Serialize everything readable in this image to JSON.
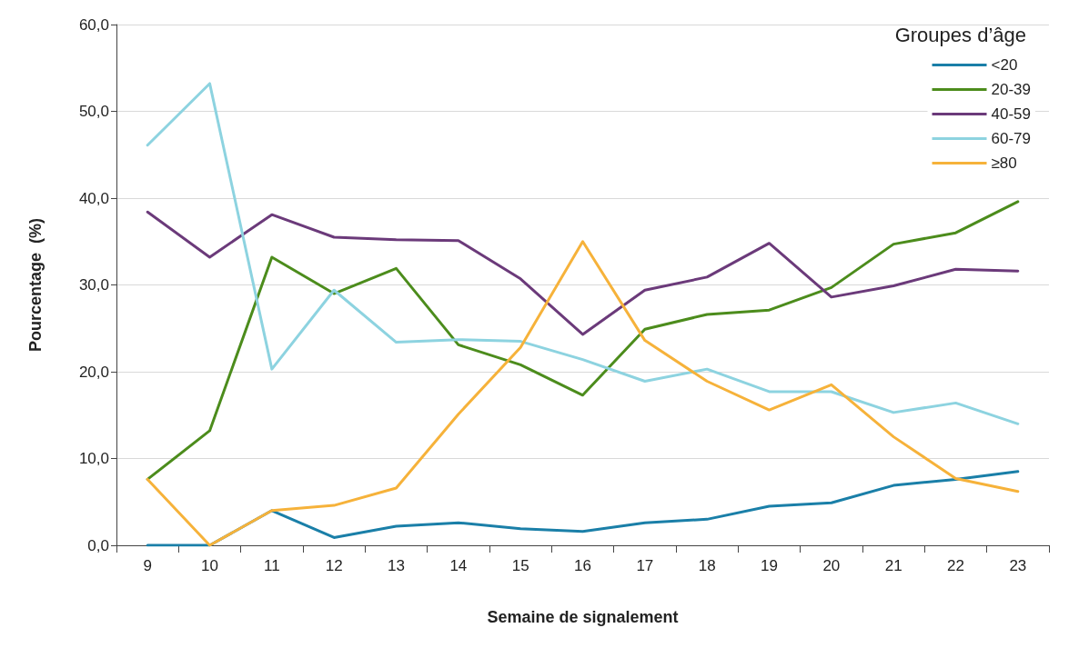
{
  "chart_data": {
    "type": "line",
    "xlabel": "Semaine de signalement",
    "ylabel": "Pourcentage  (%)",
    "legend_title": "Groupes d’âge",
    "legend": "top right",
    "grid": "y",
    "marker": "none",
    "line_style": "solid",
    "categories": [
      "9",
      "10",
      "11",
      "12",
      "13",
      "14",
      "15",
      "16",
      "17",
      "18",
      "19",
      "20",
      "21",
      "22",
      "23"
    ],
    "ylim": [
      0,
      60
    ],
    "yticks": [
      {
        "value": 0,
        "label": "0,0"
      },
      {
        "value": 10,
        "label": "10,0"
      },
      {
        "value": 20,
        "label": "20,0"
      },
      {
        "value": 30,
        "label": "30,0"
      },
      {
        "value": 40,
        "label": "40,0"
      },
      {
        "value": 50,
        "label": "50,0"
      },
      {
        "value": 60,
        "label": "60,0"
      }
    ],
    "series": [
      {
        "name": "<20",
        "color": "#1a7fa8",
        "values": [
          0,
          0,
          4.0,
          0.9,
          2.2,
          2.6,
          1.9,
          1.6,
          2.6,
          3.0,
          4.5,
          4.9,
          6.9,
          7.6,
          8.5
        ]
      },
      {
        "name": "20-39",
        "color": "#4c8c1c",
        "values": [
          7.6,
          13.2,
          33.2,
          29.0,
          31.9,
          23.1,
          20.8,
          17.3,
          24.9,
          26.6,
          27.1,
          29.7,
          34.7,
          36.0,
          39.6
        ]
      },
      {
        "name": "40-59",
        "color": "#6b3a7a",
        "values": [
          38.4,
          33.2,
          38.1,
          35.5,
          35.2,
          35.1,
          30.7,
          24.3,
          29.4,
          30.9,
          34.8,
          28.6,
          29.9,
          31.8,
          31.6
        ]
      },
      {
        "name": "60-79",
        "color": "#8dd3e0",
        "values": [
          46.1,
          53.2,
          20.3,
          29.4,
          23.4,
          23.7,
          23.5,
          21.4,
          18.9,
          20.3,
          17.7,
          17.7,
          15.3,
          16.4,
          14.0
        ]
      },
      {
        "name": "≥80",
        "color": "#f6b23a",
        "values": [
          7.6,
          0,
          4.0,
          4.6,
          6.6,
          15.1,
          22.8,
          35.0,
          23.6,
          18.9,
          15.6,
          18.5,
          12.5,
          7.7,
          6.2
        ]
      }
    ]
  }
}
